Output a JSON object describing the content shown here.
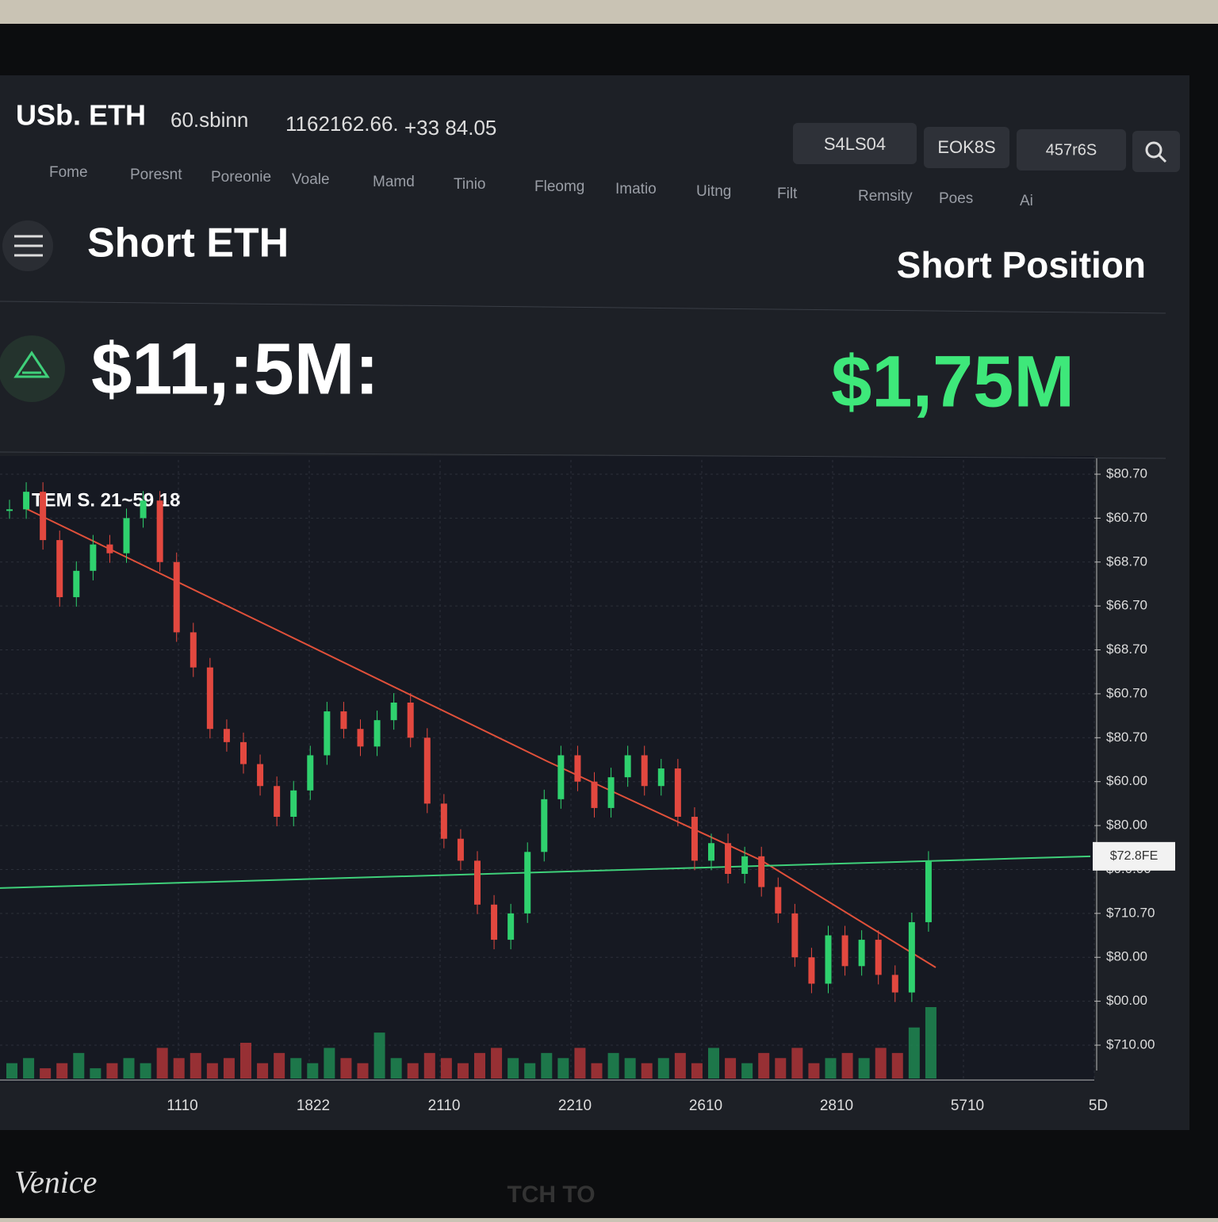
{
  "header": {
    "pair": "USb. ETH",
    "volume": "60.sbinn",
    "price": "1162162.66.",
    "change": "+33 84.05",
    "buttons": [
      "S4LS04",
      "EOK8S",
      "457r6S"
    ]
  },
  "nav": [
    "Fome",
    "Poresnt",
    "Poreonie",
    "Voale",
    "Mamd",
    "Tinio",
    "Fleomg",
    "Imatio",
    "Uitng",
    "Filt",
    "Remsity",
    "Poes",
    "Ai"
  ],
  "summary": {
    "title": "Short ETH",
    "right_title": "Short Position",
    "amount": "$11,:5M:",
    "position_amount": "$1,75M"
  },
  "chart": {
    "type": "candlestick",
    "label": "TEM S. 21~59 18",
    "ylim": [
      0,
      13
    ],
    "yticks": [
      {
        "value": 13,
        "label": "$80.70"
      },
      {
        "value": 12,
        "label": "$60.70"
      },
      {
        "value": 11,
        "label": "$68.70"
      },
      {
        "value": 10,
        "label": "$66.70"
      },
      {
        "value": 9,
        "label": "$68.70"
      },
      {
        "value": 8,
        "label": "$60.70"
      },
      {
        "value": 7,
        "label": "$80.70"
      },
      {
        "value": 6,
        "label": "$60.00"
      },
      {
        "value": 5,
        "label": "$80.00"
      },
      {
        "value": 4,
        "label": "$0.0.00"
      },
      {
        "value": 3,
        "label": "$710.70"
      },
      {
        "value": 2,
        "label": "$80.00"
      },
      {
        "value": 1,
        "label": "$00.00"
      },
      {
        "value": 0,
        "label": "$710.00"
      }
    ],
    "price_line": {
      "value": 4.3,
      "label": "$72.8FE"
    },
    "closes": [
      12.2,
      12.6,
      11.5,
      10.2,
      10.8,
      11.4,
      11.2,
      12.0,
      12.4,
      11.0,
      9.4,
      8.6,
      7.2,
      6.9,
      6.4,
      5.9,
      5.2,
      5.8,
      6.6,
      7.6,
      7.2,
      6.8,
      7.4,
      7.8,
      7.0,
      5.5,
      4.7,
      4.2,
      3.2,
      2.4,
      3.0,
      4.4,
      5.6,
      6.6,
      6.0,
      5.4,
      6.1,
      6.6,
      5.9,
      6.3,
      5.2,
      4.2,
      4.6,
      3.9,
      4.3,
      3.6,
      3.0,
      2.0,
      1.4,
      2.5,
      1.8,
      2.4,
      1.6,
      1.2,
      2.8,
      4.2
    ],
    "volumes": [
      3,
      4,
      2,
      3,
      5,
      2,
      3,
      4,
      3,
      6,
      4,
      5,
      3,
      4,
      7,
      3,
      5,
      4,
      3,
      6,
      4,
      3,
      9,
      4,
      3,
      5,
      4,
      3,
      5,
      6,
      4,
      3,
      5,
      4,
      6,
      3,
      5,
      4,
      3,
      4,
      5,
      3,
      6,
      4,
      3,
      5,
      4,
      6,
      3,
      4,
      5,
      4,
      6,
      5,
      10,
      14
    ],
    "xticks": [
      "1110",
      "1822",
      "2110",
      "2210",
      "2610",
      "2810",
      "5710",
      "5D"
    ]
  },
  "bezel": "TCH TO",
  "watermark": "Venice"
}
